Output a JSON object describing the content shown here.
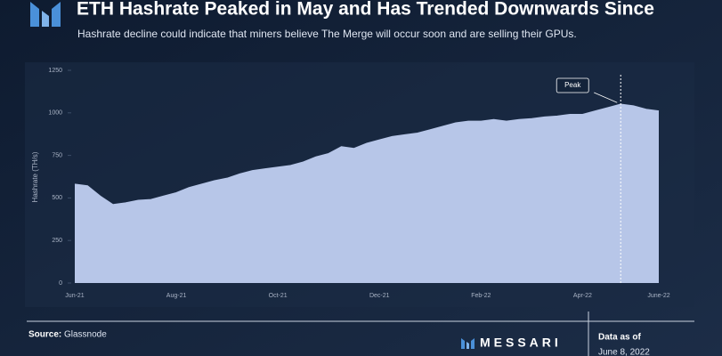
{
  "chart_data": {
    "type": "area",
    "title": "ETH Hashrate Peaked in May and Has Trended Downwards Since",
    "subtitle": "Hashrate decline could indicate that miners believe The Merge will occur soon and are selling their GPUs.",
    "ylabel": "Hashrate (TH/s)",
    "categories": [
      "Jun-21",
      null,
      null,
      null,
      null,
      null,
      null,
      null,
      "Aug-21",
      null,
      null,
      null,
      null,
      null,
      null,
      null,
      "Oct-21",
      null,
      null,
      null,
      null,
      null,
      null,
      null,
      "Dec-21",
      null,
      null,
      null,
      null,
      null,
      null,
      null,
      "Feb-22",
      null,
      null,
      null,
      null,
      null,
      null,
      null,
      "Apr-22",
      null,
      null,
      null,
      null,
      null,
      "June-22"
    ],
    "values": [
      580,
      570,
      510,
      460,
      470,
      485,
      490,
      510,
      530,
      560,
      580,
      600,
      615,
      640,
      660,
      670,
      680,
      690,
      710,
      740,
      760,
      800,
      790,
      820,
      840,
      860,
      870,
      880,
      900,
      920,
      940,
      950,
      950,
      960,
      950,
      960,
      965,
      975,
      980,
      990,
      990,
      1010,
      1030,
      1050,
      1040,
      1020,
      1010
    ],
    "color": "#b7c6e8",
    "ylim": [
      0,
      1250
    ],
    "yticks": [
      0,
      250,
      500,
      750,
      1000,
      1250
    ],
    "peak": {
      "label": "Peak"
    }
  },
  "footer": {
    "source_label": "Source:",
    "source": "Glassnode",
    "brand": "MESSARI",
    "data_as_of": "Data as of",
    "date": "June 8, 2022"
  }
}
